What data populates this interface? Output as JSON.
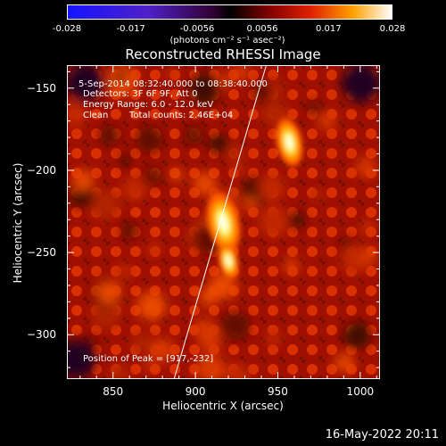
{
  "colorbar": {
    "tick_labels": [
      "-0.028",
      "-0.017",
      "-0.0056",
      "0.0056",
      "0.017",
      "0.028"
    ],
    "units": "(photons cm⁻² s⁻¹ asec⁻²)"
  },
  "title": "Reconstructed RHESSI Image",
  "info": {
    "time_range": "5-Sep-2014 08:32:40.000 to 08:38:40.000",
    "detectors": "Detectors: 3F 6F 9F, Att 0",
    "energy": "Energy Range: 6.0 - 12.0 keV",
    "method": "Clean",
    "counts": "Total counts: 2.46E+04",
    "peak": "Position of Peak = [917,-232]"
  },
  "footer_date": "16-May-2022 20:11",
  "chart_data": {
    "type": "heatmap",
    "xlabel": "Heliocentric X (arcsec)",
    "ylabel": "Heliocentric Y (arcsec)",
    "xlim": [
      822,
      1012
    ],
    "ylim": [
      -327,
      -136
    ],
    "x_ticks": [
      850,
      900,
      950,
      1000
    ],
    "y_ticks": [
      -150,
      -200,
      -250,
      -300
    ],
    "x_tick_labels": [
      "850",
      "900",
      "950",
      "1000"
    ],
    "y_tick_labels": [
      "−150",
      "−200",
      "−250",
      "−300"
    ],
    "colormap": "RHESSI red-temperature (negative: blue→purple, positive: red→yellow→white)",
    "clim": [
      -0.028,
      0.028
    ],
    "sources": [
      {
        "x": 917,
        "y": -232,
        "peak_rel": 1.0
      },
      {
        "x": 957,
        "y": -183,
        "peak_rel": 0.8
      },
      {
        "x": 920,
        "y": -255,
        "peak_rel": 0.6
      }
    ],
    "limb_line": {
      "points": [
        [
          887,
          -327
        ],
        [
          943,
          -136
        ]
      ]
    }
  },
  "colors": {
    "background": "#000000",
    "text": "#ffffff",
    "limb": "#ffffff"
  }
}
